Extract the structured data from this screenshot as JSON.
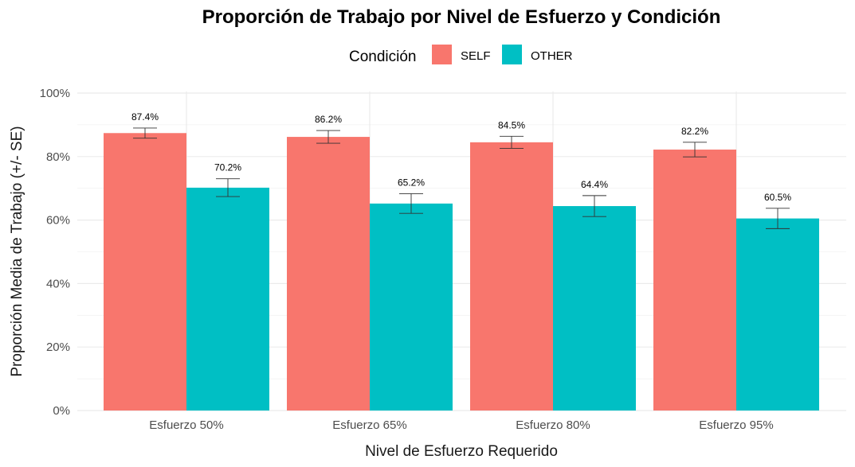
{
  "chart_data": {
    "type": "bar",
    "title": "Proporción de Trabajo por Nivel de Esfuerzo y Condición",
    "xlabel": "Nivel de Esfuerzo Requerido",
    "ylabel": "Proporción Media de Trabajo (+/- SE)",
    "legend_title": "Condición",
    "legend_position": "top",
    "categories": [
      "Esfuerzo 50%",
      "Esfuerzo 65%",
      "Esfuerzo 80%",
      "Esfuerzo 95%"
    ],
    "series": [
      {
        "name": "SELF",
        "color": "#F8766D",
        "values": [
          87.4,
          86.2,
          84.5,
          82.2
        ],
        "se": [
          1.6,
          2.0,
          1.9,
          2.3
        ],
        "labels": [
          "87.4%",
          "86.2%",
          "84.5%",
          "82.2%"
        ]
      },
      {
        "name": "OTHER",
        "color": "#00BFC4",
        "values": [
          70.2,
          65.2,
          64.4,
          60.5
        ],
        "se": [
          2.8,
          3.1,
          3.3,
          3.2
        ],
        "labels": [
          "70.2%",
          "65.2%",
          "64.4%",
          "60.5%"
        ]
      }
    ],
    "ylim": [
      0,
      100
    ],
    "yticks": [
      0,
      20,
      40,
      60,
      80,
      100
    ],
    "ytick_labels": [
      "0%",
      "20%",
      "40%",
      "60%",
      "80%",
      "100%"
    ],
    "grid": true
  }
}
